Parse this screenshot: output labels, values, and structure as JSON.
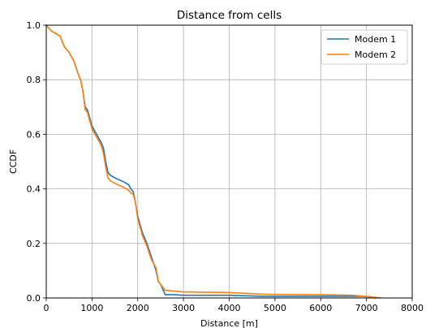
{
  "chart_data": {
    "type": "line",
    "title": "Distance from cells",
    "xlabel": "Distance [m]",
    "ylabel": "CCDF",
    "xlim": [
      0,
      8000
    ],
    "ylim": [
      0,
      1.0
    ],
    "xticks": [
      0,
      1000,
      2000,
      3000,
      4000,
      5000,
      6000,
      7000,
      8000
    ],
    "xtick_labels": [
      "0",
      "1000",
      "2000",
      "3000",
      "4000",
      "5000",
      "6000",
      "7000",
      "8000"
    ],
    "yticks": [
      0.0,
      0.2,
      0.4,
      0.6,
      0.8,
      1.0
    ],
    "ytick_labels": [
      "0.0",
      "0.2",
      "0.4",
      "0.6",
      "0.8",
      "1.0"
    ],
    "grid": true,
    "legend_position": "top-right",
    "series": [
      {
        "name": "Modem 1",
        "color": "#1f77b4",
        "x": [
          0,
          50,
          100,
          200,
          300,
          350,
          400,
          500,
          600,
          700,
          750,
          800,
          850,
          900,
          950,
          1000,
          1100,
          1200,
          1250,
          1300,
          1350,
          1400,
          1450,
          1500,
          1700,
          1800,
          1850,
          1900,
          1950,
          2000,
          2050,
          2100,
          2200,
          2300,
          2400,
          2450,
          2500,
          2600,
          2800,
          3000,
          4000,
          4700,
          5000,
          6000,
          6700,
          6900,
          7100,
          7200
        ],
        "y": [
          1.0,
          0.99,
          0.98,
          0.97,
          0.96,
          0.94,
          0.92,
          0.9,
          0.87,
          0.82,
          0.8,
          0.76,
          0.7,
          0.69,
          0.66,
          0.63,
          0.6,
          0.57,
          0.55,
          0.5,
          0.46,
          0.45,
          0.445,
          0.44,
          0.425,
          0.415,
          0.4,
          0.39,
          0.35,
          0.3,
          0.27,
          0.24,
          0.2,
          0.15,
          0.1,
          0.06,
          0.05,
          0.012,
          0.012,
          0.01,
          0.01,
          0.006,
          0.006,
          0.006,
          0.006,
          0.006,
          0.004,
          0.0
        ]
      },
      {
        "name": "Modem 2",
        "color": "#ff7f0e",
        "x": [
          0,
          50,
          100,
          200,
          300,
          350,
          400,
          500,
          600,
          700,
          750,
          800,
          850,
          900,
          950,
          1000,
          1100,
          1200,
          1250,
          1300,
          1350,
          1400,
          1450,
          1500,
          1700,
          1800,
          1850,
          1900,
          1950,
          2000,
          2050,
          2100,
          2200,
          2300,
          2400,
          2450,
          2500,
          2600,
          2800,
          3000,
          4000,
          4700,
          5000,
          6000,
          6700,
          6900,
          7100,
          7300
        ],
        "y": [
          1.0,
          0.99,
          0.98,
          0.97,
          0.96,
          0.94,
          0.92,
          0.9,
          0.87,
          0.82,
          0.8,
          0.76,
          0.69,
          0.68,
          0.65,
          0.62,
          0.59,
          0.56,
          0.53,
          0.48,
          0.44,
          0.43,
          0.425,
          0.42,
          0.405,
          0.395,
          0.385,
          0.38,
          0.35,
          0.29,
          0.26,
          0.23,
          0.19,
          0.14,
          0.11,
          0.06,
          0.05,
          0.028,
          0.025,
          0.022,
          0.02,
          0.014,
          0.013,
          0.012,
          0.01,
          0.007,
          0.004,
          0.0
        ]
      }
    ]
  }
}
